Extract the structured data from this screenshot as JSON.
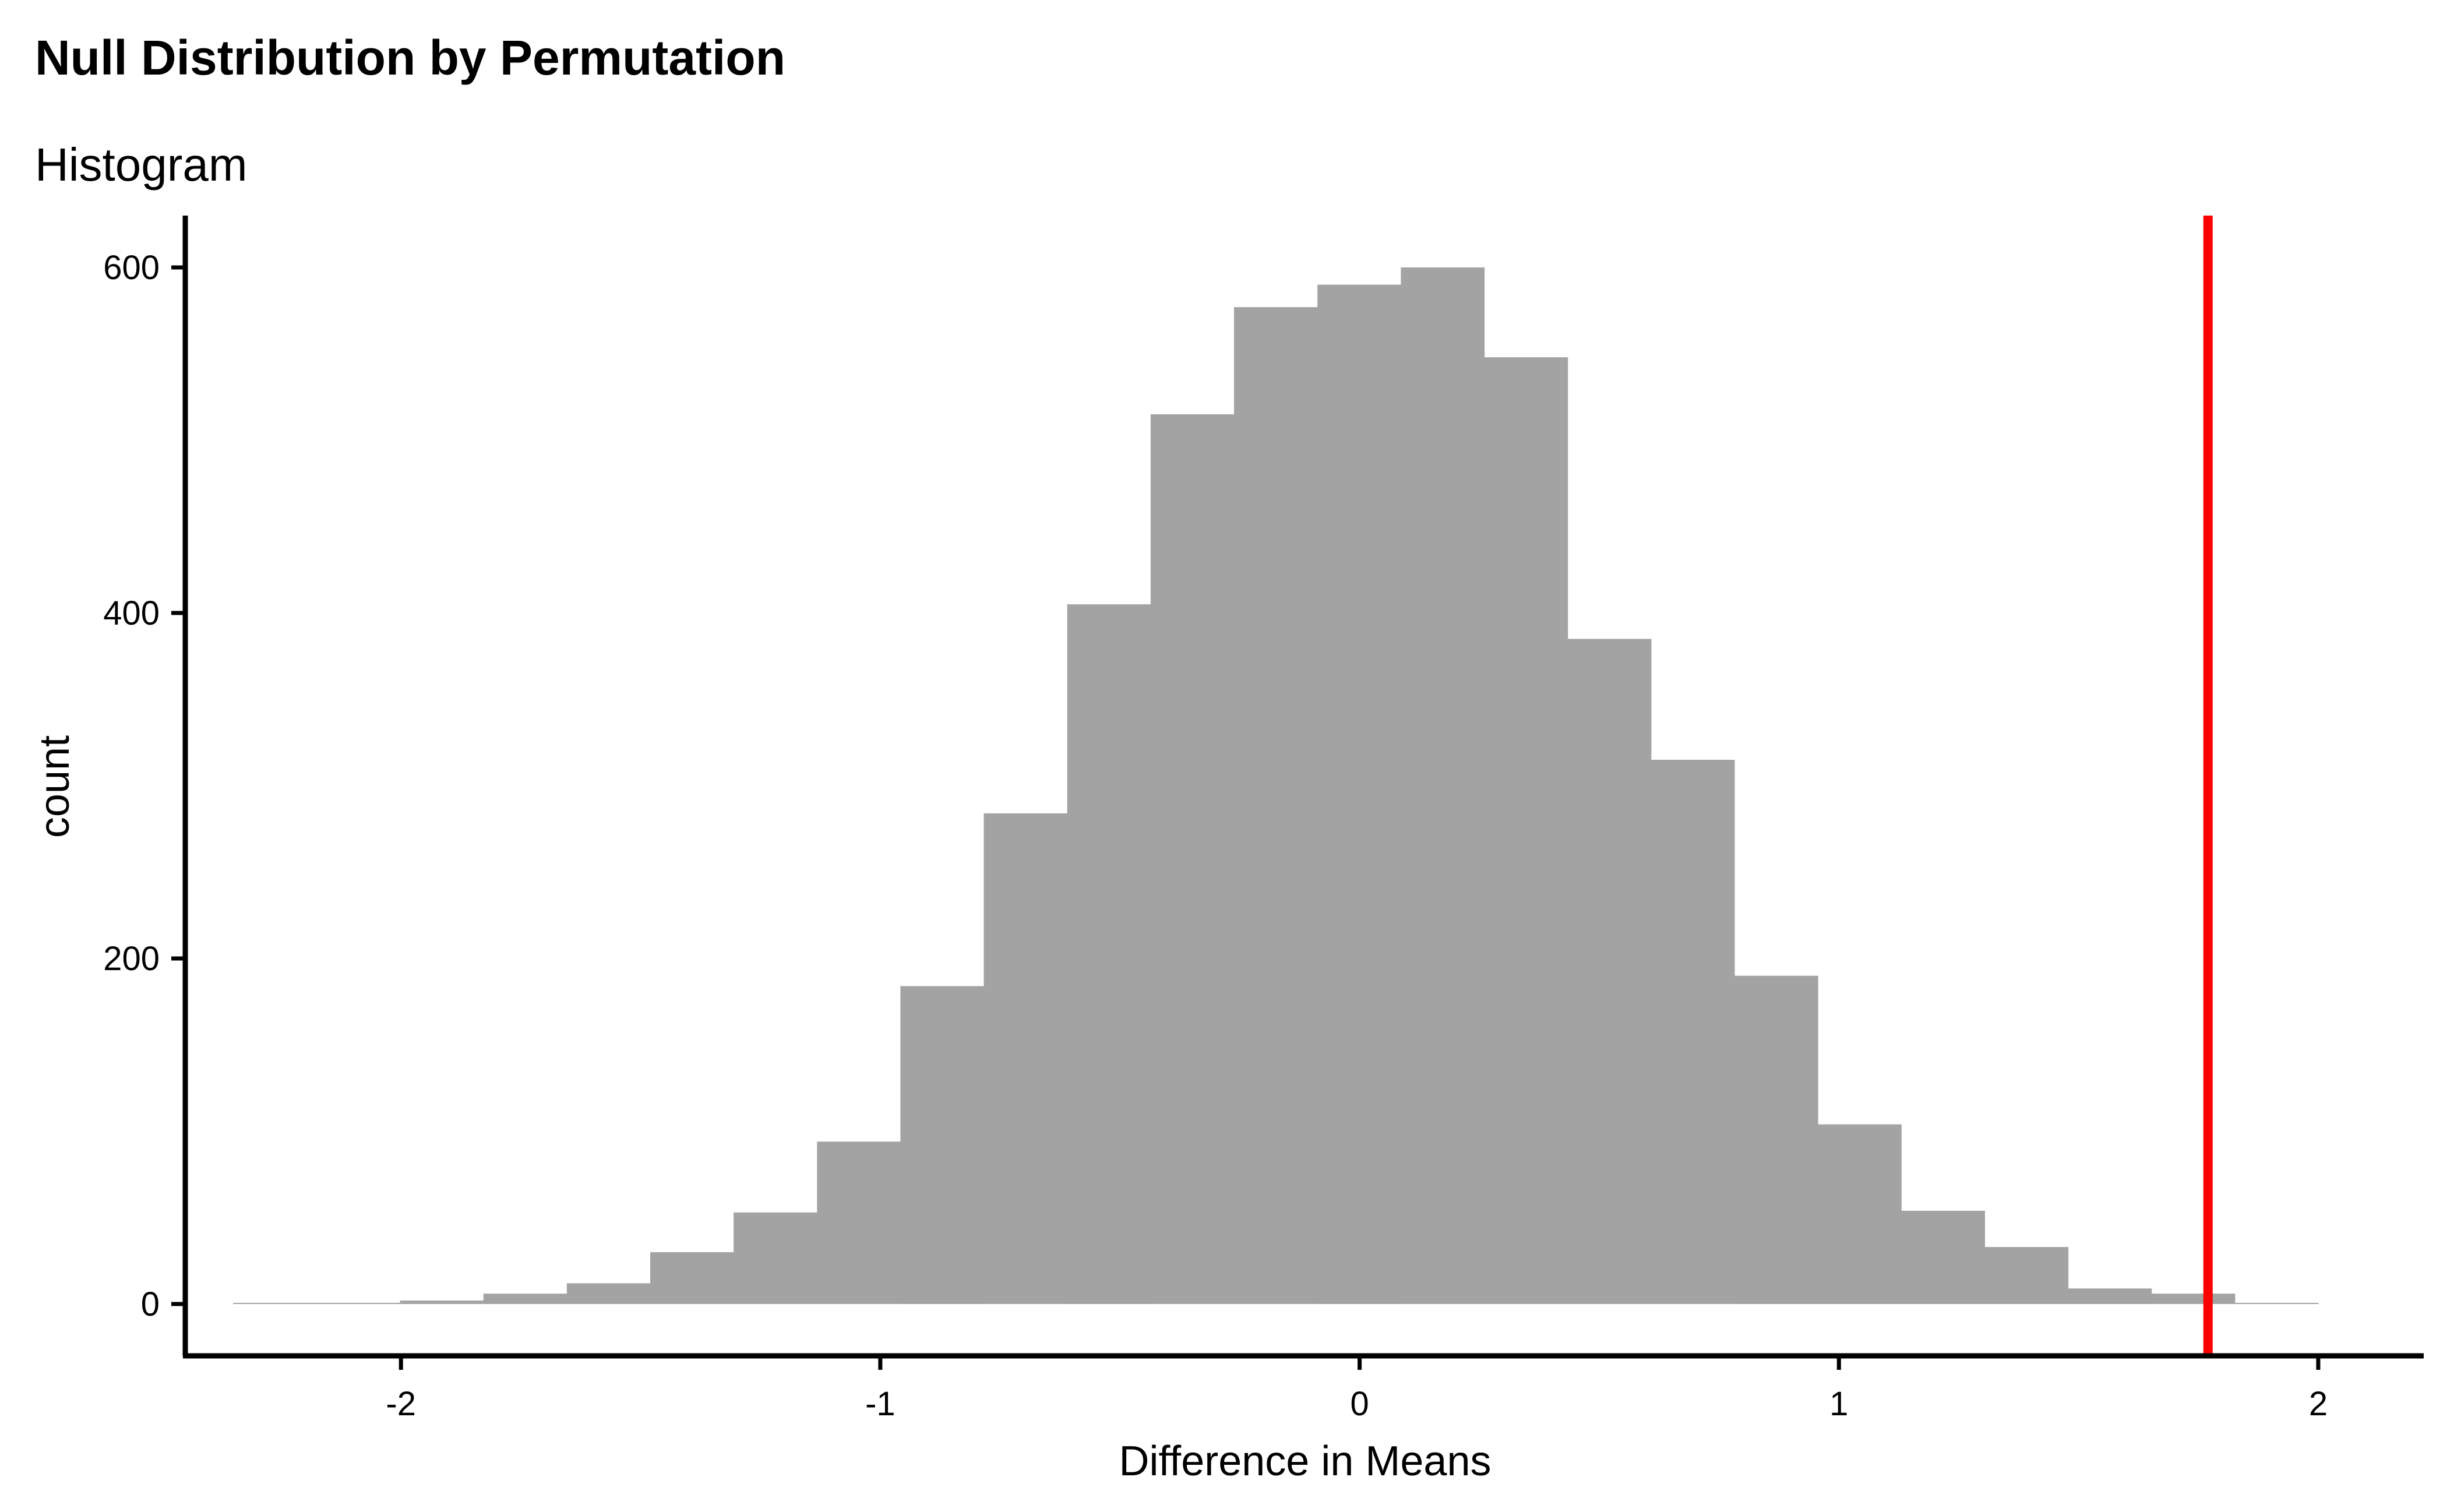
{
  "chart_data": {
    "type": "bar",
    "title": "Null Distribution by Permutation",
    "subtitle": "Histogram",
    "xlabel": "Difference in Means",
    "ylabel": "count",
    "xlim": [
      -2.45,
      2.22
    ],
    "ylim": [
      -30,
      630
    ],
    "x_ticks": [
      -2,
      -1,
      0,
      1,
      2
    ],
    "y_ticks": [
      0,
      200,
      400,
      600
    ],
    "grid": false,
    "legend": "none",
    "bin_width": 0.174,
    "bins": [
      {
        "x0": -2.35,
        "x1": -2.176,
        "count": 0
      },
      {
        "x0": -2.176,
        "x1": -2.002,
        "count": 0
      },
      {
        "x0": -2.002,
        "x1": -1.828,
        "count": 2
      },
      {
        "x0": -1.828,
        "x1": -1.654,
        "count": 6
      },
      {
        "x0": -1.654,
        "x1": -1.48,
        "count": 12
      },
      {
        "x0": -1.48,
        "x1": -1.306,
        "count": 30
      },
      {
        "x0": -1.306,
        "x1": -1.132,
        "count": 53
      },
      {
        "x0": -1.132,
        "x1": -0.958,
        "count": 94
      },
      {
        "x0": -0.958,
        "x1": -0.784,
        "count": 184
      },
      {
        "x0": -0.784,
        "x1": -0.61,
        "count": 284
      },
      {
        "x0": -0.61,
        "x1": -0.436,
        "count": 405
      },
      {
        "x0": -0.436,
        "x1": -0.262,
        "count": 515
      },
      {
        "x0": -0.262,
        "x1": -0.088,
        "count": 577
      },
      {
        "x0": -0.088,
        "x1": 0.086,
        "count": 590
      },
      {
        "x0": 0.086,
        "x1": 0.26,
        "count": 600
      },
      {
        "x0": 0.26,
        "x1": 0.434,
        "count": 548
      },
      {
        "x0": 0.434,
        "x1": 0.608,
        "count": 385
      },
      {
        "x0": 0.608,
        "x1": 0.782,
        "count": 315
      },
      {
        "x0": 0.782,
        "x1": 0.956,
        "count": 190
      },
      {
        "x0": 0.956,
        "x1": 1.13,
        "count": 104
      },
      {
        "x0": 1.13,
        "x1": 1.304,
        "count": 54
      },
      {
        "x0": 1.304,
        "x1": 1.478,
        "count": 33
      },
      {
        "x0": 1.478,
        "x1": 1.652,
        "count": 9
      },
      {
        "x0": 1.652,
        "x1": 1.826,
        "count": 6
      },
      {
        "x0": 1.826,
        "x1": 2.0,
        "count": 0
      }
    ],
    "bar_color": "#a3a3a3",
    "reference_line": {
      "x": 1.77,
      "color": "#ff0000"
    }
  }
}
